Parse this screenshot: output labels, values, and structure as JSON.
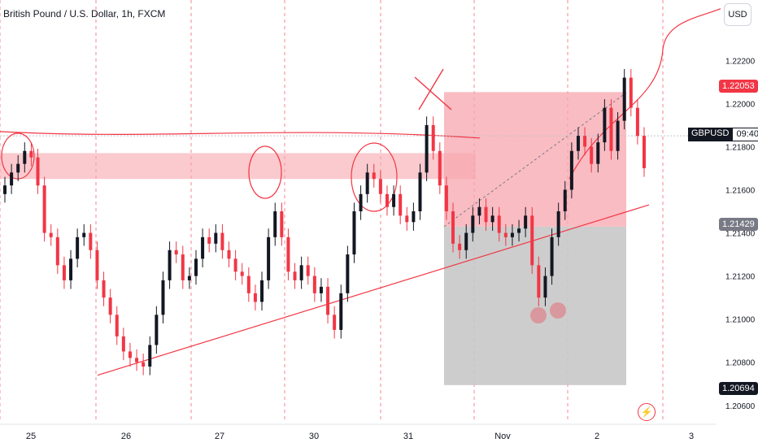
{
  "header": {
    "title": "British Pound / U.S. Dollar, 1h, FXCM"
  },
  "axis": {
    "currency": "USD",
    "y_ticks": [
      "1.22200",
      "1.22000",
      "1.21800",
      "1.21600",
      "1.21400",
      "1.21200",
      "1.21000",
      "1.20800",
      "1.20600"
    ],
    "x_ticks": [
      "25",
      "26",
      "27",
      "30",
      "31",
      "Nov",
      "2",
      "3"
    ]
  },
  "price_tags": {
    "take_profit": "1.22053",
    "entry": "1.21429",
    "stop": "1.20694",
    "symbol": "GBPUSD",
    "countdown": "09:40"
  },
  "colors": {
    "up": "#131722",
    "down": "#f23645",
    "zone_red": "#f7a6ad",
    "zone_gray": "#c8c8c8",
    "line": "#f23645"
  },
  "icons": {
    "alert": "lightning-icon"
  },
  "chart_data": {
    "type": "candlestick",
    "ylim": [
      1.2052,
      1.2245
    ],
    "candles_close": [
      1.2162,
      1.2168,
      1.2172,
      1.2178,
      1.2175,
      1.2162,
      1.214,
      1.2138,
      1.2125,
      1.2118,
      1.2128,
      1.2138,
      1.214,
      1.2132,
      1.2118,
      1.211,
      1.2102,
      1.2092,
      1.2085,
      1.2082,
      1.208,
      1.2078,
      1.2088,
      1.2102,
      1.2118,
      1.2132,
      1.213,
      1.2118,
      1.212,
      1.2128,
      1.2138,
      1.2135,
      1.214,
      1.2132,
      1.2128,
      1.2122,
      1.212,
      1.2112,
      1.2108,
      1.2118,
      1.2138,
      1.215,
      1.2138,
      1.2122,
      1.2118,
      1.2125,
      1.212,
      1.2112,
      1.2115,
      1.2102,
      1.2095,
      1.2112,
      1.213,
      1.215,
      1.2158,
      1.2168,
      1.2165,
      1.2158,
      1.2152,
      1.2158,
      1.2148,
      1.2145,
      1.215,
      1.2168,
      1.219,
      1.2178,
      1.2162,
      1.215,
      1.2135,
      1.2132,
      1.214,
      1.2148,
      1.2152,
      1.2145,
      1.2148,
      1.214,
      1.2138,
      1.214,
      1.2142,
      1.2148,
      1.2125,
      1.211,
      1.212,
      1.2138,
      1.215,
      1.216,
      1.2178,
      1.2185,
      1.218,
      1.2172,
      1.2182,
      1.2198,
      1.2178,
      1.2192,
      1.2212,
      1.2198,
      1.2185,
      1.217
    ]
  }
}
